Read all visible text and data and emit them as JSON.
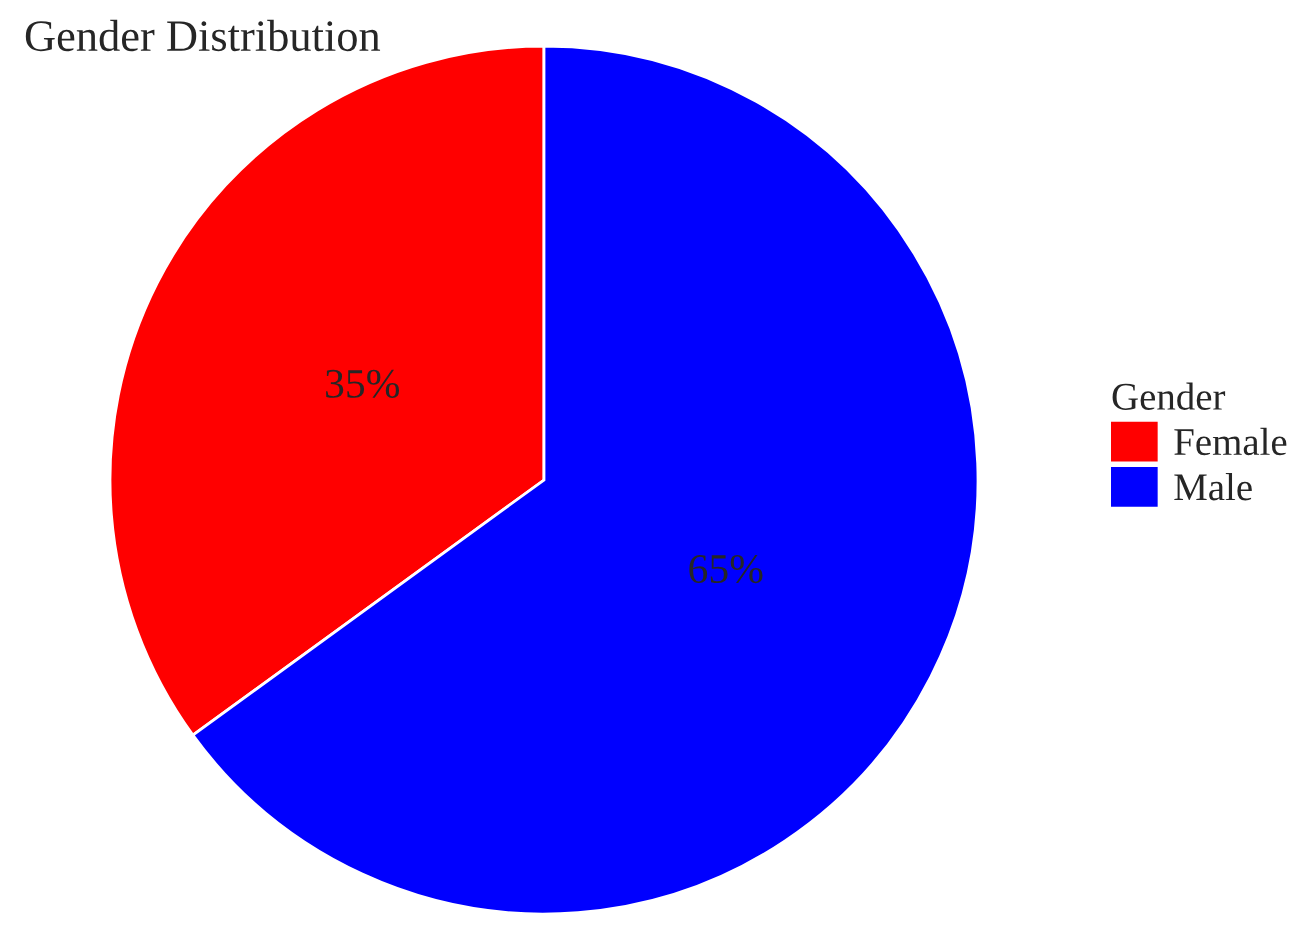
{
  "chart_data": {
    "type": "pie",
    "title": "Gender Distribution",
    "legend_title": "Gender",
    "legend": "right",
    "categories": [
      "Female",
      "Male"
    ],
    "values": [
      35,
      65
    ],
    "value_labels": [
      "35%",
      "65%"
    ],
    "colors": [
      "#ff0000",
      "#0000ff"
    ]
  }
}
